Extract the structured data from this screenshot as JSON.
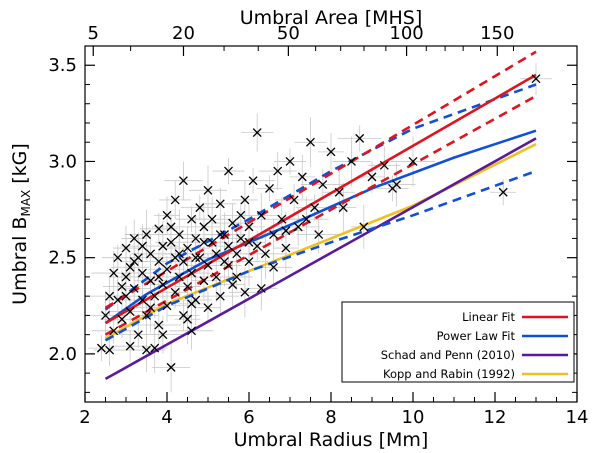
{
  "chart_data": {
    "type": "scatter",
    "xlabel": "Umbral Radius [Mm]",
    "ylabel_main": "Umbral B",
    "ylabel_sub": "MAX",
    "ylabel_unit": "[kG]",
    "top_axis_label": "Umbral Area [MHS]",
    "xlim": [
      2,
      14
    ],
    "ylim": [
      1.75,
      3.6
    ],
    "x_ticks": [
      2,
      4,
      6,
      8,
      10,
      12,
      14
    ],
    "x_tick_labels": [
      "2",
      "4",
      "6",
      "8",
      "10",
      "12",
      "14"
    ],
    "y_ticks": [
      2.0,
      2.5,
      3.0,
      3.5
    ],
    "y_tick_labels": [
      "2.0",
      "2.5",
      "3.0",
      "3.5"
    ],
    "top_ticks_area": [
      5,
      20,
      50,
      100,
      150
    ],
    "top_tick_labels": [
      "5",
      "20",
      "50",
      "100",
      "150"
    ],
    "legend": [
      {
        "label": "Linear Fit",
        "color": "#e0141e"
      },
      {
        "label": "Power Law Fit",
        "color": "#1050d8"
      },
      {
        "label": "Schad and Penn (2010)",
        "color": "#5a1a9a"
      },
      {
        "label": "Kopp and Rabin (1992)",
        "color": "#f0c020"
      }
    ],
    "fit_lines": {
      "linear_fit": {
        "color": "#e0141e",
        "points": [
          [
            2.5,
            2.16
          ],
          [
            13.0,
            3.45
          ]
        ]
      },
      "linear_upper": {
        "color": "#e0141e",
        "dashed": true,
        "points": [
          [
            2.5,
            2.24
          ],
          [
            13.0,
            3.57
          ]
        ]
      },
      "linear_lower": {
        "color": "#e0141e",
        "dashed": true,
        "points": [
          [
            2.5,
            2.1
          ],
          [
            13.0,
            3.34
          ]
        ]
      },
      "power_fit": {
        "color": "#1050d8",
        "points": [
          [
            2.5,
            2.16
          ],
          [
            3.5,
            2.31
          ],
          [
            5,
            2.49
          ],
          [
            7,
            2.67
          ],
          [
            9,
            2.86
          ],
          [
            11,
            3.02
          ],
          [
            13,
            3.16
          ]
        ]
      },
      "power_upper": {
        "color": "#1050d8",
        "dashed": true,
        "points": [
          [
            2.5,
            2.23
          ],
          [
            4,
            2.47
          ],
          [
            6,
            2.7
          ],
          [
            8,
            2.95
          ],
          [
            10,
            3.17
          ],
          [
            13,
            3.4
          ]
        ]
      },
      "power_lower": {
        "color": "#1050d8",
        "dashed": true,
        "points": [
          [
            2.5,
            2.07
          ],
          [
            4,
            2.25
          ],
          [
            6,
            2.43
          ],
          [
            8,
            2.58
          ],
          [
            10,
            2.72
          ],
          [
            13,
            2.95
          ]
        ]
      },
      "schad_penn": {
        "color": "#5a1a9a",
        "points": [
          [
            2.5,
            1.87
          ],
          [
            13.0,
            3.12
          ]
        ]
      },
      "kopp_rabin": {
        "color": "#f0c020",
        "points": [
          [
            2.5,
            2.08
          ],
          [
            4,
            2.26
          ],
          [
            6,
            2.43
          ],
          [
            8,
            2.6
          ],
          [
            10,
            2.77
          ],
          [
            13,
            3.09
          ]
        ]
      }
    },
    "scatter_points": [
      [
        2.4,
        2.03
      ],
      [
        2.6,
        2.02
      ],
      [
        2.6,
        2.3
      ],
      [
        2.7,
        2.42
      ],
      [
        2.8,
        2.28
      ],
      [
        2.8,
        2.5
      ],
      [
        2.9,
        2.35
      ],
      [
        2.9,
        2.18
      ],
      [
        3.0,
        2.55
      ],
      [
        3.0,
        2.4
      ],
      [
        3.1,
        2.45
      ],
      [
        3.1,
        2.22
      ],
      [
        3.2,
        2.6
      ],
      [
        3.2,
        2.34
      ],
      [
        3.3,
        2.5
      ],
      [
        3.3,
        2.1
      ],
      [
        3.4,
        2.28
      ],
      [
        3.4,
        2.42
      ],
      [
        3.5,
        2.02
      ],
      [
        3.5,
        2.62
      ],
      [
        3.5,
        2.2
      ],
      [
        3.6,
        2.38
      ],
      [
        3.6,
        2.52
      ],
      [
        3.7,
        2.3
      ],
      [
        3.7,
        2.03
      ],
      [
        3.8,
        2.48
      ],
      [
        3.8,
        2.65
      ],
      [
        3.8,
        2.15
      ],
      [
        3.9,
        2.36
      ],
      [
        3.9,
        2.56
      ],
      [
        4.0,
        2.44
      ],
      [
        4.0,
        2.25
      ],
      [
        4.0,
        2.72
      ],
      [
        4.1,
        2.58
      ],
      [
        4.1,
        1.93
      ],
      [
        4.2,
        2.5
      ],
      [
        4.2,
        2.32
      ],
      [
        4.2,
        2.8
      ],
      [
        4.3,
        2.4
      ],
      [
        4.3,
        2.62
      ],
      [
        4.4,
        2.48
      ],
      [
        4.4,
        2.2
      ],
      [
        4.4,
        2.9
      ],
      [
        4.5,
        2.55
      ],
      [
        4.5,
        2.35
      ],
      [
        4.6,
        2.7
      ],
      [
        4.6,
        2.42
      ],
      [
        4.6,
        2.12
      ],
      [
        4.7,
        2.6
      ],
      [
        4.7,
        2.28
      ],
      [
        4.8,
        2.76
      ],
      [
        4.8,
        2.5
      ],
      [
        4.9,
        2.38
      ],
      [
        4.9,
        2.66
      ],
      [
        5.0,
        2.85
      ],
      [
        5.0,
        2.46
      ],
      [
        5.0,
        2.24
      ],
      [
        5.1,
        2.58
      ],
      [
        5.1,
        2.7
      ],
      [
        5.2,
        2.4
      ],
      [
        5.2,
        2.52
      ],
      [
        5.3,
        2.78
      ],
      [
        5.3,
        2.3
      ],
      [
        5.4,
        2.62
      ],
      [
        5.4,
        2.48
      ],
      [
        5.5,
        2.95
      ],
      [
        5.5,
        2.56
      ],
      [
        5.6,
        2.68
      ],
      [
        5.6,
        2.36
      ],
      [
        5.7,
        2.52
      ],
      [
        5.8,
        2.72
      ],
      [
        5.8,
        2.6
      ],
      [
        5.9,
        2.8
      ],
      [
        6.0,
        2.66
      ],
      [
        6.0,
        2.48
      ],
      [
        6.1,
        2.9
      ],
      [
        6.2,
        2.56
      ],
      [
        6.2,
        3.15
      ],
      [
        6.3,
        2.72
      ],
      [
        6.4,
        2.52
      ],
      [
        6.5,
        2.86
      ],
      [
        6.6,
        2.62
      ],
      [
        6.7,
        2.95
      ],
      [
        6.8,
        2.7
      ],
      [
        6.9,
        2.55
      ],
      [
        7.0,
        3.0
      ],
      [
        7.1,
        2.8
      ],
      [
        7.2,
        2.66
      ],
      [
        7.3,
        2.92
      ],
      [
        7.5,
        3.1
      ],
      [
        7.6,
        2.76
      ],
      [
        7.8,
        2.88
      ],
      [
        8.0,
        3.05
      ],
      [
        8.2,
        2.84
      ],
      [
        8.5,
        3.0
      ],
      [
        8.7,
        3.12
      ],
      [
        9.0,
        2.92
      ],
      [
        9.3,
        2.98
      ],
      [
        9.6,
        2.88
      ],
      [
        10.0,
        3.0
      ],
      [
        12.2,
        2.84
      ],
      [
        13.0,
        3.43
      ],
      [
        3.0,
        2.3
      ],
      [
        3.4,
        2.56
      ],
      [
        4.5,
        2.18
      ],
      [
        5.7,
        2.4
      ],
      [
        6.6,
        2.45
      ],
      [
        7.7,
        2.62
      ],
      [
        8.8,
        2.66
      ],
      [
        3.6,
        2.24
      ],
      [
        4.1,
        2.66
      ],
      [
        4.7,
        2.5
      ],
      [
        5.3,
        2.62
      ],
      [
        6.3,
        2.34
      ],
      [
        2.5,
        2.2
      ],
      [
        2.7,
        2.12
      ],
      [
        3.2,
        2.48
      ],
      [
        3.8,
        2.4
      ],
      [
        4.3,
        2.52
      ],
      [
        4.9,
        2.58
      ],
      [
        5.5,
        2.46
      ],
      [
        6.0,
        2.58
      ],
      [
        6.9,
        2.64
      ],
      [
        7.4,
        2.7
      ],
      [
        8.3,
        2.76
      ],
      [
        9.5,
        2.86
      ],
      [
        3.1,
        2.04
      ],
      [
        3.9,
        2.1
      ],
      [
        4.6,
        2.26
      ],
      [
        5.9,
        2.32
      ]
    ]
  }
}
